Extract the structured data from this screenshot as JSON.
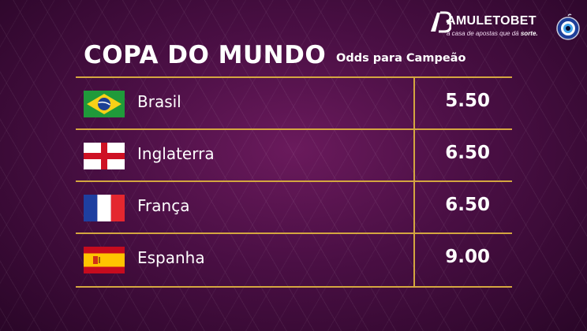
{
  "brand": {
    "name": "AMULETOBET",
    "tagline_prefix": "a casa de apostas que dá ",
    "tagline_emphasis": "sorte."
  },
  "header": {
    "title": "COPA DO MUNDO",
    "subtitle": "Odds para Campeão"
  },
  "rows": [
    {
      "team": "Brasil",
      "odds": "5.50",
      "flag": "brazil-flag-icon"
    },
    {
      "team": "Inglaterra",
      "odds": "6.50",
      "flag": "england-flag-icon"
    },
    {
      "team": "França",
      "odds": "6.50",
      "flag": "france-flag-icon"
    },
    {
      "team": "Espanha",
      "odds": "9.00",
      "flag": "spain-flag-icon"
    }
  ],
  "colors": {
    "background": "#4a0f44",
    "gold_lines": "#d4a640",
    "text": "#ffffff"
  }
}
